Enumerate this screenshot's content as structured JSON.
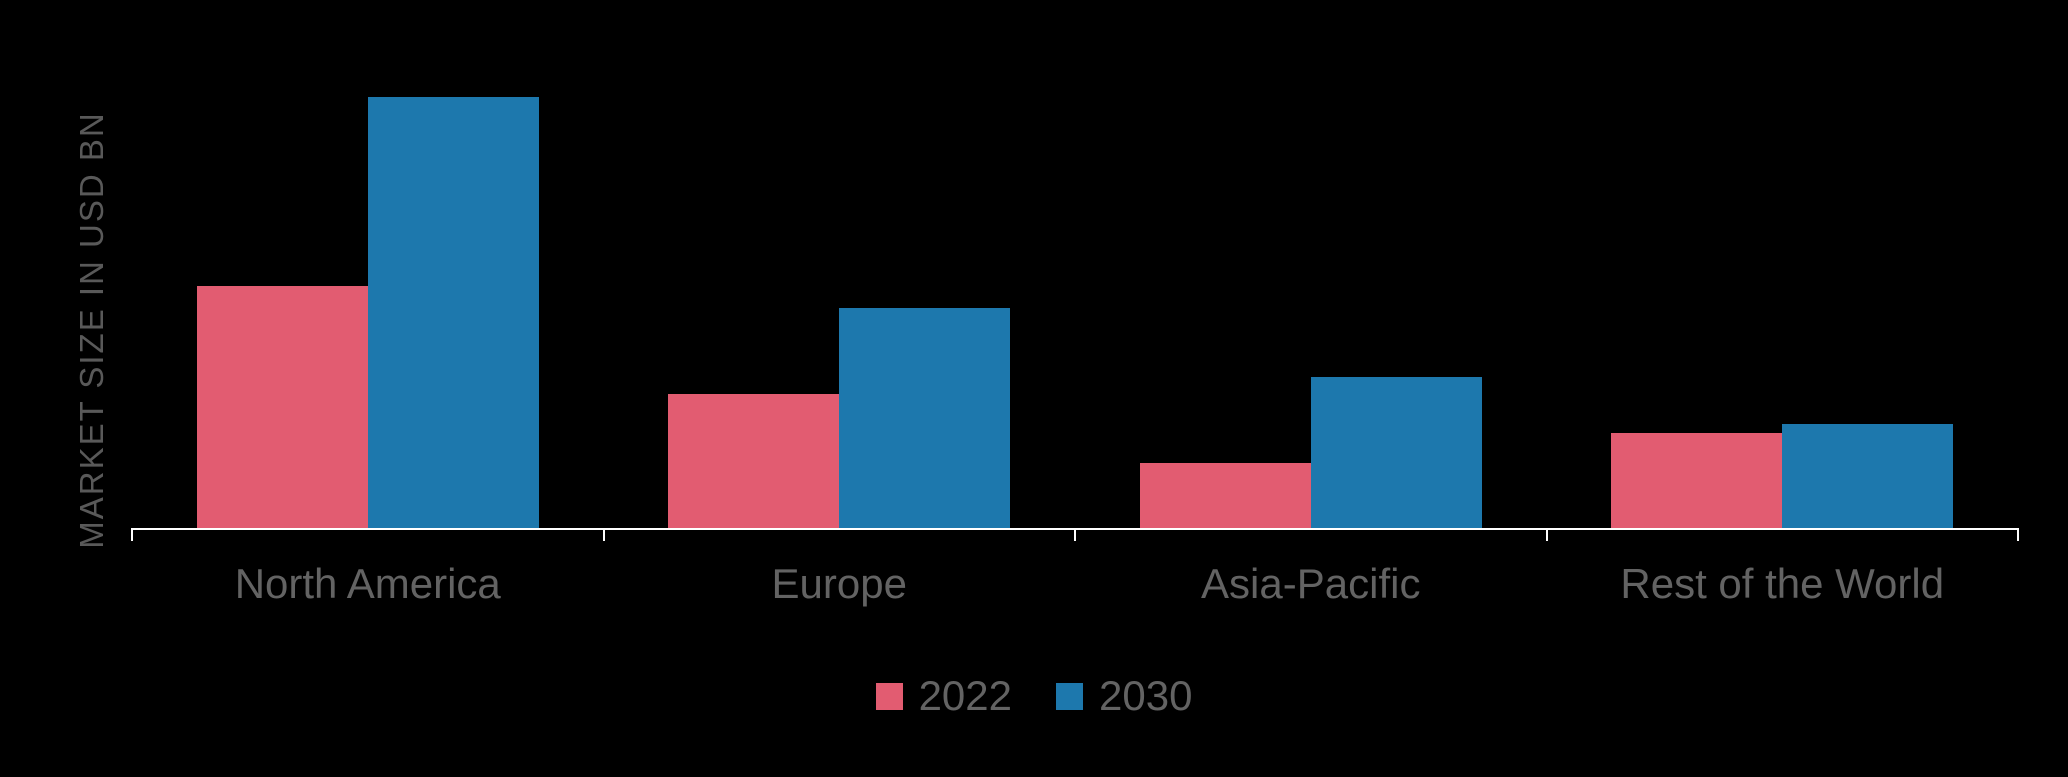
{
  "chart_data": {
    "type": "bar",
    "title": "",
    "xlabel": "",
    "ylabel": "MARKET SIZE IN USD BN",
    "categories": [
      "North America",
      "Europe",
      "Asia-Pacific",
      "Rest of the World"
    ],
    "series": [
      {
        "name": "2022",
        "color": "#e25c71",
        "values": [
          5.6,
          3.1,
          1.5,
          2.2
        ]
      },
      {
        "name": "2030",
        "color": "#1d78ad",
        "values": [
          10.0,
          5.1,
          3.5,
          2.4
        ]
      }
    ],
    "ylim": [
      0,
      10.2
    ],
    "grid": false,
    "y_tick_labels_visible": false,
    "legend_position": "bottom",
    "background": "#000000",
    "axis_color": "#ffffff",
    "text_color": "#636363"
  }
}
